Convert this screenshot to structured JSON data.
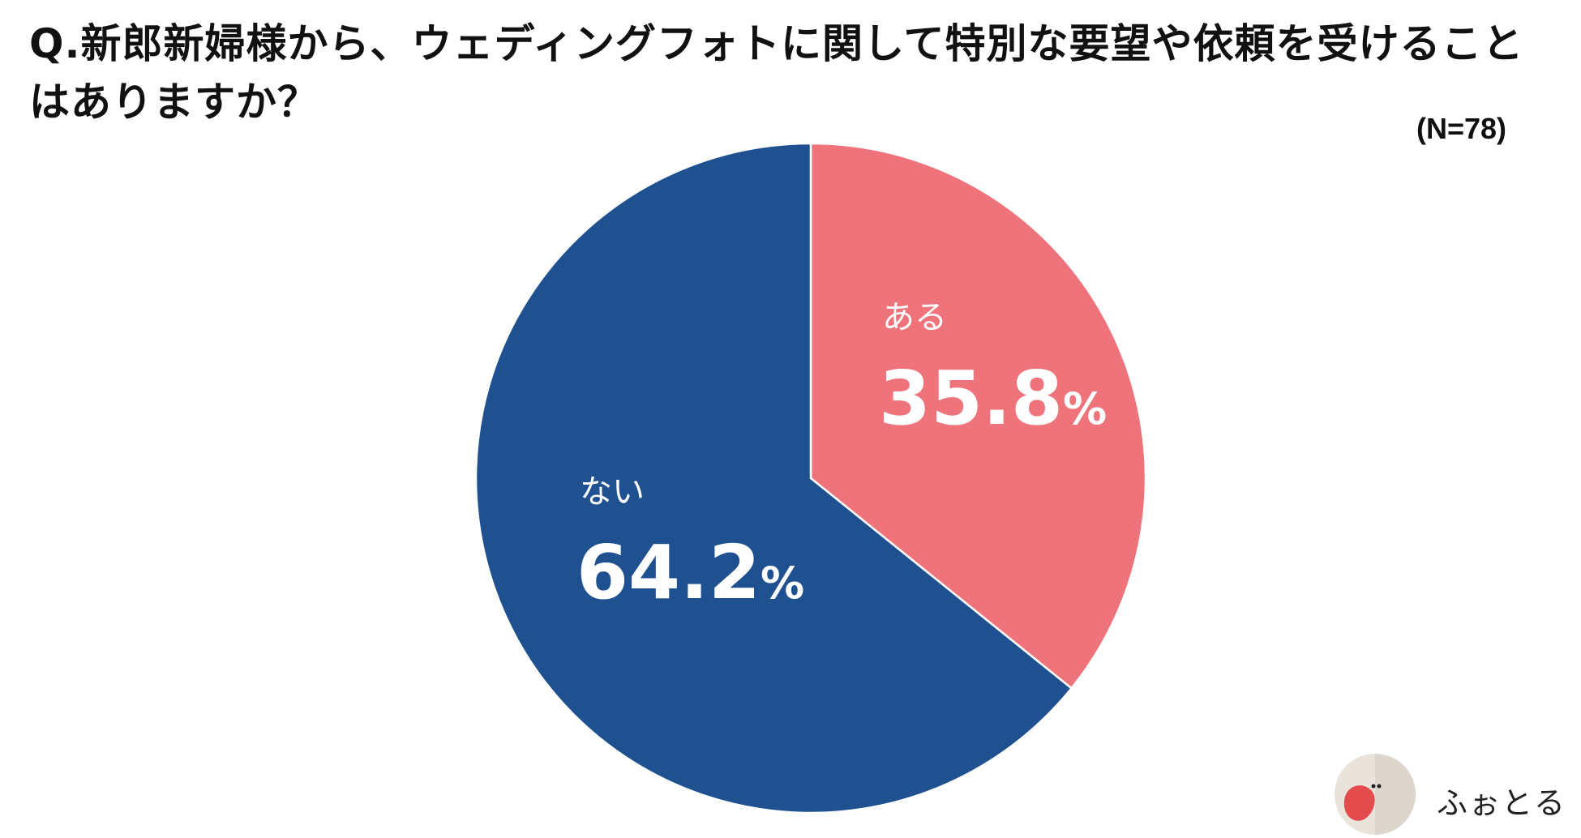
{
  "title": "Q.新郎新婦様から、ウェディングフォトに関して特別な要望や依頼を受けることはありますか？",
  "sample_size": "(N=78)",
  "logo_text": "ふぉとる",
  "chart_data": {
    "type": "pie",
    "title": "Q.新郎新婦様から、ウェディングフォトに関して特別な要望や依頼を受けることはありますか？",
    "subtitle": "(N=78)",
    "categories": [
      "ある",
      "ない"
    ],
    "values": [
      35.8,
      64.2
    ],
    "value_labels": [
      "35.8",
      "64.2"
    ],
    "unit": "%",
    "colors": [
      "#ee737b",
      "#1f5190"
    ],
    "start_angle": "12 o'clock",
    "direction": "clockwise",
    "legend": "none"
  }
}
